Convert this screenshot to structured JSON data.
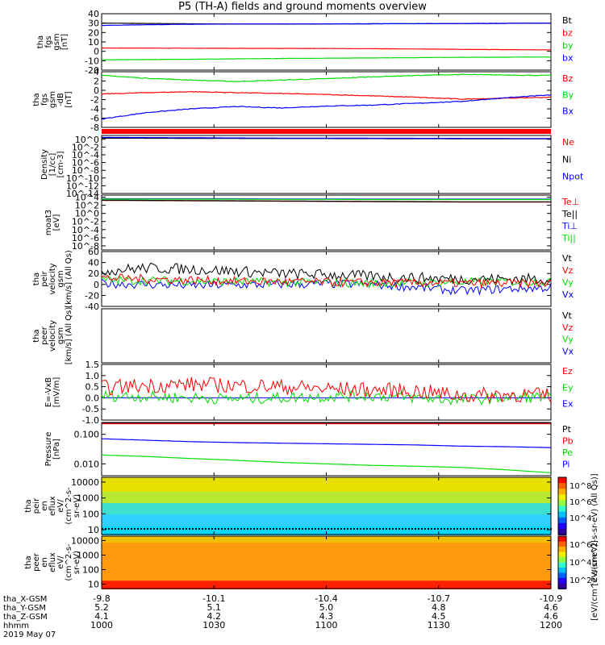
{
  "title": "P5 (TH-A) fields and ground moments overview",
  "colors": {
    "black": "#000000",
    "red": "#ff0000",
    "green": "#00dd00",
    "blue": "#0000ff",
    "red_band": "#ff0000"
  },
  "chart_data": {
    "type": "line",
    "x_axis": {
      "rows": [
        {
          "label": "tha_X-GSM",
          "values": [
            "-9.8",
            "-10.1",
            "-10.4",
            "-10.7",
            "-10.9"
          ]
        },
        {
          "label": "tha_Y-GSM",
          "values": [
            "5.2",
            "5.1",
            "5.0",
            "4.8",
            "4.6"
          ]
        },
        {
          "label": "tha_Z-GSM",
          "values": [
            "4.1",
            "4.2",
            "4.3",
            "4.5",
            "4.6"
          ]
        },
        {
          "label": "hhmm",
          "values": [
            "1000",
            "1030",
            "1100",
            "1130",
            "1200"
          ]
        }
      ],
      "date": "2019 May 07",
      "range": [
        "10:00",
        "12:00"
      ]
    },
    "panels": [
      {
        "ylabel": [
          "tha",
          "fgs",
          "gsm",
          "[nT]"
        ],
        "ticks": [
          "40",
          "30",
          "20",
          "10",
          "0",
          "-10",
          "-20"
        ],
        "ylim": [
          -20,
          40
        ],
        "legend": [
          {
            "text": "Bt",
            "color": "#000000"
          },
          {
            "text": "bz",
            "color": "#ff0000"
          },
          {
            "text": "by",
            "color": "#00dd00"
          },
          {
            "text": "bx",
            "color": "#0000ff"
          }
        ],
        "series": [
          {
            "name": "Bt",
            "color": "#000000",
            "values": [
              30,
              29.6,
              29.3,
              29,
              29,
              29.1,
              29.3,
              29.4,
              29.5,
              29.7,
              30
            ]
          },
          {
            "name": "bx",
            "color": "#0000ff",
            "values": [
              27.5,
              28.3,
              28.8,
              29,
              29.1,
              29.2,
              29.3,
              29.4,
              29.6,
              29.8,
              30
            ]
          },
          {
            "name": "bz",
            "color": "#ff0000",
            "values": [
              3.5,
              3.4,
              3.3,
              3.2,
              3.1,
              3,
              2.8,
              2.5,
              2.1,
              1.8,
              1.5
            ]
          },
          {
            "name": "by",
            "color": "#00dd00",
            "values": [
              -9,
              -8.7,
              -8.4,
              -8,
              -7.6,
              -7.3,
              -7,
              -6.7,
              -6.4,
              -6.2,
              -6
            ]
          }
        ]
      },
      {
        "ylabel": [
          "tha",
          "fgs",
          "gsm",
          "-dB",
          "[nT]"
        ],
        "ticks": [
          "4",
          "2",
          "0",
          "-2",
          "-4",
          "-6",
          "-8"
        ],
        "ylim": [
          -8,
          4
        ],
        "legend": [
          {
            "text": "Bz",
            "color": "#ff0000"
          },
          {
            "text": "By",
            "color": "#00dd00"
          },
          {
            "text": "Bx",
            "color": "#0000ff"
          }
        ],
        "series": [
          {
            "name": "By",
            "color": "#00dd00",
            "values": [
              3.2,
              2.6,
              2.2,
              1.9,
              2.2,
              2.5,
              2.9,
              3.2,
              3.4,
              3.3,
              3.2
            ]
          },
          {
            "name": "Bz",
            "color": "#ff0000",
            "values": [
              -0.8,
              -0.5,
              -0.3,
              -0.5,
              -0.7,
              -0.9,
              -1.2,
              -1.5,
              -1.9,
              -1.7,
              -1.5
            ]
          },
          {
            "name": "Bx",
            "color": "#0000ff",
            "values": [
              -6.2,
              -4.8,
              -4,
              -3.5,
              -3.8,
              -3.4,
              -3.2,
              -2.8,
              -2.4,
              -1.6,
              -1
            ]
          }
        ]
      },
      {
        "ylabel": [
          "Density",
          "[1/cc]",
          "[cm-3]"
        ],
        "ticks": [
          "10^0",
          "10^-2",
          "10^-4",
          "10^-6",
          "10^-8",
          "10^-10",
          "10^-12",
          "10^-14"
        ],
        "ylim": [
          -14,
          1
        ],
        "log": true,
        "legend": [
          {
            "text": "Ne",
            "color": "#ff0000"
          },
          {
            "text": "Ni",
            "color": "#000000"
          },
          {
            "text": "Npot",
            "color": "#0000ff"
          }
        ],
        "series": [
          {
            "name": "Ni",
            "color": "#000000",
            "values": [
              0.3,
              0.28,
              0.25,
              0.22,
              0.2,
              0.2,
              0.18,
              0.17,
              0.15,
              0.14,
              0.13
            ]
          },
          {
            "name": "Npot",
            "color": "#0000ff",
            "values": [
              0.5,
              0.45,
              0.4,
              0.35,
              0.32,
              0.3,
              0.28,
              0.26,
              0.24,
              0.22,
              0.2
            ]
          }
        ]
      },
      {
        "ylabel": [
          "moat3",
          "[eV]"
        ],
        "ticks": [
          "10^4",
          "10^2",
          "10^0",
          "10^-2",
          "10^-4",
          "10^-6",
          "10^-8"
        ],
        "ylim": [
          -9,
          4.5
        ],
        "log": true,
        "legend": [
          {
            "text": "Te⊥",
            "color": "#ff0000"
          },
          {
            "text": "Te||",
            "color": "#000000"
          },
          {
            "text": "Ti⊥",
            "color": "#0000ff"
          },
          {
            "text": "Ti||",
            "color": "#00dd00"
          }
        ],
        "series": [
          {
            "name": "Ti⊥",
            "color": "#0000ff",
            "values": [
              3.6,
              3.6,
              3.6,
              3.6,
              3.55,
              3.55,
              3.5,
              3.5,
              3.5,
              3.5,
              3.5
            ]
          },
          {
            "name": "Ti||",
            "color": "#00dd00",
            "values": [
              3.5,
              3.5,
              3.5,
              3.5,
              3.45,
              3.45,
              3.4,
              3.4,
              3.4,
              3.4,
              3.4
            ]
          },
          {
            "name": "Te⊥",
            "color": "#ff0000",
            "values": [
              3.2,
              3.15,
              3.1,
              3.05,
              3,
              2.95,
              2.9,
              2.85,
              2.8,
              2.8,
              2.8
            ]
          },
          {
            "name": "Te||",
            "color": "#000000",
            "values": [
              3.25,
              3.2,
              3.15,
              3.1,
              3.05,
              3,
              2.95,
              2.9,
              2.85,
              2.85,
              2.85
            ]
          }
        ]
      },
      {
        "ylabel": [
          "tha",
          "peir",
          "velocity",
          "gsm",
          "[km/s] (All Qs)"
        ],
        "ticks": [
          "60",
          "40",
          "20",
          "0",
          "-20",
          "-40"
        ],
        "ylim": [
          -40,
          60
        ],
        "legend": [
          {
            "text": "Vt",
            "color": "#000000"
          },
          {
            "text": "Vz",
            "color": "#ff0000"
          },
          {
            "text": "Vy",
            "color": "#00dd00"
          },
          {
            "text": "Vx",
            "color": "#0000ff"
          }
        ],
        "series": [
          {
            "name": "Vx",
            "color": "#0000ff",
            "values": [
              2,
              0,
              -2,
              -1,
              0,
              1,
              0,
              -5,
              -12,
              -8,
              -6
            ]
          },
          {
            "name": "Vy",
            "color": "#00dd00",
            "values": [
              8,
              7,
              6,
              5,
              4,
              3,
              2,
              3,
              4,
              5,
              5
            ]
          },
          {
            "name": "Vt",
            "color": "#000000",
            "values": [
              25,
              30,
              28,
              24,
              20,
              18,
              15,
              12,
              10,
              10,
              10
            ]
          },
          {
            "name": "Vz",
            "color": "#ff0000",
            "values": [
              12,
              10,
              8,
              6,
              5,
              4,
              3,
              3,
              2,
              2,
              2
            ]
          }
        ]
      },
      {
        "ylabel": [
          "tha",
          "peer",
          "velocity",
          "gsm",
          "[km/s] (All Qs)"
        ],
        "ticks": [],
        "ylim": [
          0,
          1
        ],
        "legend": [
          {
            "text": "Vt",
            "color": "#000000"
          },
          {
            "text": "Vz",
            "color": "#ff0000"
          },
          {
            "text": "Vy",
            "color": "#00dd00"
          },
          {
            "text": "Vx",
            "color": "#0000ff"
          }
        ],
        "series": []
      },
      {
        "ylabel": [
          "E=-VxB",
          "[mV/m]"
        ],
        "ticks": [
          "1.5",
          "1.0",
          "0.5",
          "0.0",
          "-0.5",
          "-1.0"
        ],
        "ylim": [
          -1.0,
          1.5
        ],
        "legend": [
          {
            "text": "Ez",
            "color": "#ff0000"
          },
          {
            "text": "Ey",
            "color": "#00dd00"
          },
          {
            "text": "Ex",
            "color": "#0000ff"
          }
        ],
        "series": [
          {
            "name": "Ex",
            "color": "#0000ff",
            "values": [
              0,
              0,
              0,
              0,
              0,
              0,
              0,
              0,
              0,
              0,
              0
            ]
          },
          {
            "name": "Ey",
            "color": "#00dd00",
            "values": [
              0.1,
              0.05,
              0.0,
              -0.05,
              0.0,
              0.05,
              0.1,
              0.0,
              -0.1,
              0.0,
              0.05
            ]
          },
          {
            "name": "Ez",
            "color": "#ff0000",
            "values": [
              0.45,
              0.55,
              0.6,
              0.55,
              0.5,
              0.4,
              0.35,
              0.3,
              0.1,
              0.15,
              0.1
            ]
          }
        ]
      },
      {
        "ylabel": [
          "Pressure",
          "[nPa]"
        ],
        "ticks": [
          "0.100",
          "0.010"
        ],
        "ylim": [
          -2.4,
          -0.6
        ],
        "log": true,
        "legend": [
          {
            "text": "Pt",
            "color": "#000000"
          },
          {
            "text": "Pb",
            "color": "#ff0000"
          },
          {
            "text": "Pe",
            "color": "#00dd00"
          },
          {
            "text": "Pi",
            "color": "#0000ff"
          }
        ],
        "series": [
          {
            "name": "Pt",
            "color": "#000000",
            "values": [
              -0.62,
              -0.62,
              -0.62,
              -0.62,
              -0.62,
              -0.62,
              -0.62,
              -0.62,
              -0.62,
              -0.62,
              -0.62
            ]
          },
          {
            "name": "Pb",
            "color": "#ff0000",
            "values": [
              -0.64,
              -0.64,
              -0.64,
              -0.64,
              -0.64,
              -0.64,
              -0.64,
              -0.64,
              -0.64,
              -0.64,
              -0.64
            ]
          },
          {
            "name": "Pi",
            "color": "#0000ff",
            "values": [
              -1.15,
              -1.2,
              -1.25,
              -1.28,
              -1.3,
              -1.32,
              -1.34,
              -1.36,
              -1.4,
              -1.42,
              -1.45
            ]
          },
          {
            "name": "Pe",
            "color": "#00dd00",
            "values": [
              -1.7,
              -1.75,
              -1.82,
              -1.88,
              -1.95,
              -2.0,
              -2.05,
              -2.08,
              -2.12,
              -2.2,
              -2.3
            ]
          }
        ]
      },
      {
        "type": "heatmap",
        "ylabel": [
          "tha",
          "peir",
          "en",
          "eflux",
          "eV/",
          "(cm^2-s-",
          "sr-eV)"
        ],
        "ticks": [
          "10000",
          "1000",
          "100",
          "10"
        ],
        "ylim": [
          0.7,
          4.3
        ],
        "log": true
      },
      {
        "type": "heatmap",
        "ylabel": [
          "tha",
          "peer",
          "en",
          "eflux",
          "eV/",
          "(cm^2-s-",
          "sr-eV)"
        ],
        "ticks": [
          "10000",
          "1000",
          "100",
          "10"
        ],
        "ylim": [
          0.7,
          4.3
        ],
        "log": true
      }
    ],
    "colorbar": {
      "ticks_top": [
        "10^8",
        "10^6",
        "10^4"
      ],
      "ticks_bottom": [
        "10^6",
        "10^4",
        "10^2"
      ],
      "label_top": "[eV/(cm^2-s-sr-eV) (All Qs)]",
      "label_bottom": "[eV/(cm^2-s-sr-eV)]"
    }
  }
}
